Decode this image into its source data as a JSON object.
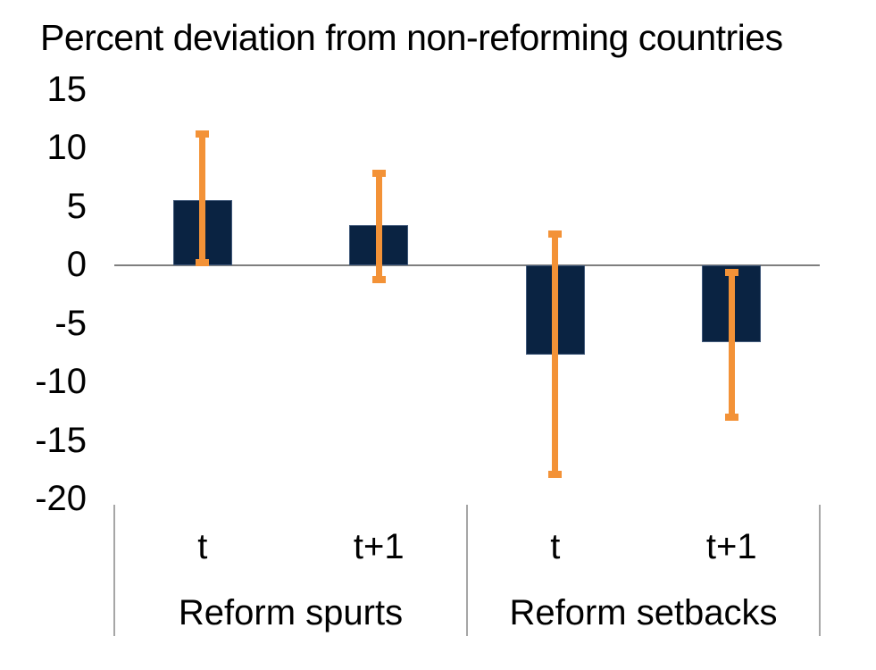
{
  "page": {
    "background": "#ffffff"
  },
  "chart_data": {
    "type": "bar",
    "title": "Percent deviation from non-reforming countries",
    "group_labels": [
      "Reform spurts",
      "Reform setbacks"
    ],
    "categories": [
      "t",
      "t+1",
      "t",
      "t+1"
    ],
    "series": [
      {
        "group": "Reform spurts",
        "category": "t",
        "value": 5.6,
        "ci_low": 0.2,
        "ci_high": 11.2
      },
      {
        "group": "Reform spurts",
        "category": "t+1",
        "value": 3.4,
        "ci_low": -1.2,
        "ci_high": 7.9
      },
      {
        "group": "Reform setbacks",
        "category": "t",
        "value": -7.6,
        "ci_low": -17.9,
        "ci_high": 2.7
      },
      {
        "group": "Reform setbacks",
        "category": "t+1",
        "value": -6.6,
        "ci_low": -13.0,
        "ci_high": -0.6
      }
    ],
    "yticks": [
      15,
      10,
      5,
      0,
      -5,
      -10,
      -15,
      -20
    ],
    "ylim": [
      -20,
      15
    ],
    "xlabel": "",
    "ylabel": "",
    "grid": false,
    "legend": false,
    "error_bars": true,
    "colors": {
      "bar_fill": "#0a2342",
      "bar_border": "#41597a",
      "error_bar": "#f39237",
      "zero_line": "#7f7f7f",
      "divider_line": "#a6a6a6",
      "text": "#000000"
    }
  }
}
